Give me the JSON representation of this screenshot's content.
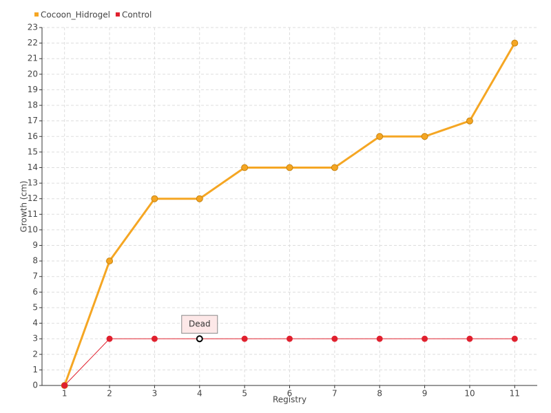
{
  "chart_data": {
    "type": "line",
    "x_label": "Registry",
    "y_label": "Growth (cm)",
    "x": [
      1,
      2,
      3,
      4,
      5,
      6,
      7,
      8,
      9,
      10,
      11
    ],
    "xlim": [
      0.5,
      11.5
    ],
    "xticks": [
      1,
      2,
      3,
      4,
      5,
      6,
      7,
      8,
      9,
      10,
      11
    ],
    "ylim": [
      0,
      23
    ],
    "yticks": [
      0,
      1,
      2,
      3,
      4,
      5,
      6,
      7,
      8,
      9,
      10,
      11,
      12,
      13,
      14,
      15,
      16,
      17,
      18,
      19,
      20,
      21,
      22,
      23
    ],
    "grid": true,
    "legend": "top-left",
    "series": [
      {
        "name": "Cocoon_Hidrogel",
        "color": "#f5a623",
        "values": [
          0,
          8,
          12,
          12,
          14,
          14,
          14,
          16,
          16,
          17,
          22
        ]
      },
      {
        "name": "Control",
        "color": "#e0202e",
        "values": [
          0,
          3,
          3,
          3,
          3,
          3,
          3,
          3,
          3,
          3,
          3
        ]
      }
    ],
    "annotations": [
      {
        "text": "Dead",
        "x": 4,
        "y": 3
      }
    ]
  }
}
